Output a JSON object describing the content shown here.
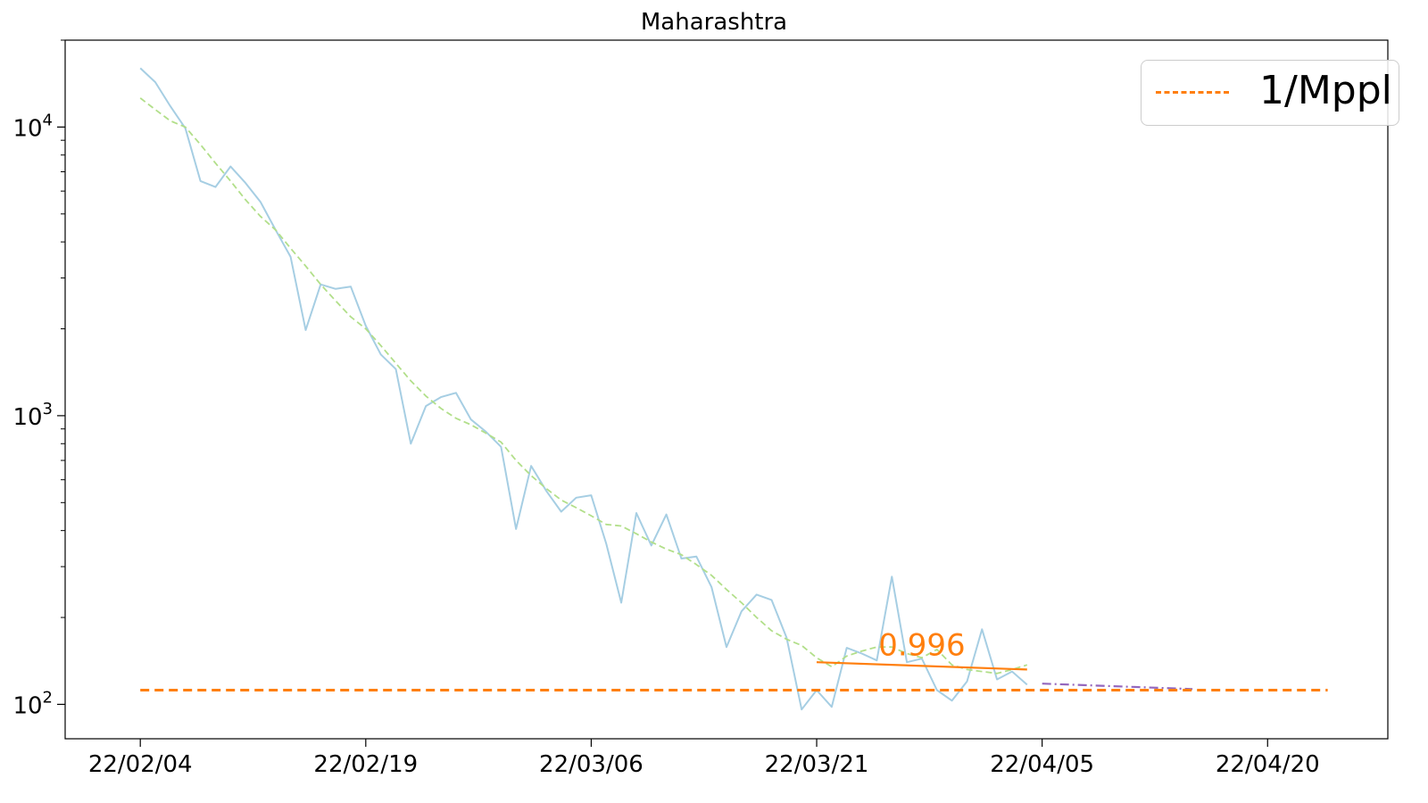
{
  "chart_data": {
    "type": "line",
    "title": "Maharashtra",
    "yscale": "log",
    "ylim": [
      76,
      20000
    ],
    "xlim": [
      "2022-01-30",
      "2022-04-28"
    ],
    "x_tick_labels": [
      "22/02/04",
      "22/02/19",
      "22/03/06",
      "22/03/21",
      "22/04/05",
      "22/04/20"
    ],
    "x_tick_dates": [
      "2022-02-04",
      "2022-02-19",
      "2022-03-06",
      "2022-03-21",
      "2022-04-05",
      "2022-04-20"
    ],
    "y_ticks": [
      {
        "value": 100,
        "base": "10",
        "exp": "2"
      },
      {
        "value": 1000,
        "base": "10",
        "exp": "3"
      },
      {
        "value": 10000,
        "base": "10",
        "exp": "4"
      }
    ],
    "series": [
      {
        "key": "daily",
        "color": "#a6cee3",
        "style": "solid",
        "start_date": "2022-02-04",
        "values": [
          16000,
          14300,
          11800,
          9900,
          6500,
          6200,
          7300,
          6400,
          5500,
          4400,
          3550,
          1980,
          2850,
          2750,
          2800,
          2050,
          1630,
          1450,
          800,
          1080,
          1160,
          1200,
          970,
          880,
          780,
          405,
          670,
          550,
          465,
          520,
          530,
          360,
          225,
          460,
          355,
          455,
          320,
          325,
          255,
          158,
          210,
          240,
          230,
          170,
          96,
          112,
          98,
          157,
          150,
          142,
          277,
          140,
          144,
          112,
          103,
          120,
          182,
          122,
          130,
          117
        ]
      },
      {
        "key": "smoothed",
        "color": "#b2df8a",
        "style": "dashed",
        "start_date": "2022-02-04",
        "values": [
          12600,
          11500,
          10500,
          10000,
          8700,
          7500,
          6500,
          5600,
          4900,
          4400,
          3800,
          3300,
          2850,
          2500,
          2200,
          2000,
          1750,
          1520,
          1320,
          1170,
          1060,
          980,
          930,
          870,
          810,
          700,
          620,
          560,
          510,
          480,
          450,
          420,
          415,
          390,
          365,
          345,
          330,
          305,
          280,
          250,
          225,
          200,
          180,
          168,
          160,
          145,
          135,
          147,
          153,
          158,
          158,
          150,
          145,
          155,
          137,
          132,
          130,
          128,
          132,
          137
        ]
      },
      {
        "key": "fit",
        "color": "#ff7f0e",
        "style": "solid",
        "x": [
          "2022-03-21",
          "2022-04-04"
        ],
        "values": [
          140,
          132
        ]
      },
      {
        "key": "projection",
        "color": "#9467bd",
        "style": "dashdot",
        "x": [
          "2022-04-05",
          "2022-04-15"
        ],
        "values": [
          118,
          113
        ]
      },
      {
        "key": "threshold",
        "name": "1/Mppl",
        "color": "#ff7f0e",
        "style": "dashed",
        "x": [
          "2022-02-04",
          "2022-04-24"
        ],
        "values": [
          112,
          112
        ]
      }
    ],
    "annotations": [
      {
        "text": "0.996",
        "x": "2022-03-28",
        "y": 148,
        "color": "#ff7f0e"
      }
    ],
    "legend": {
      "position": "top-right",
      "entries": [
        "1/Mppl"
      ]
    },
    "grid": false
  }
}
